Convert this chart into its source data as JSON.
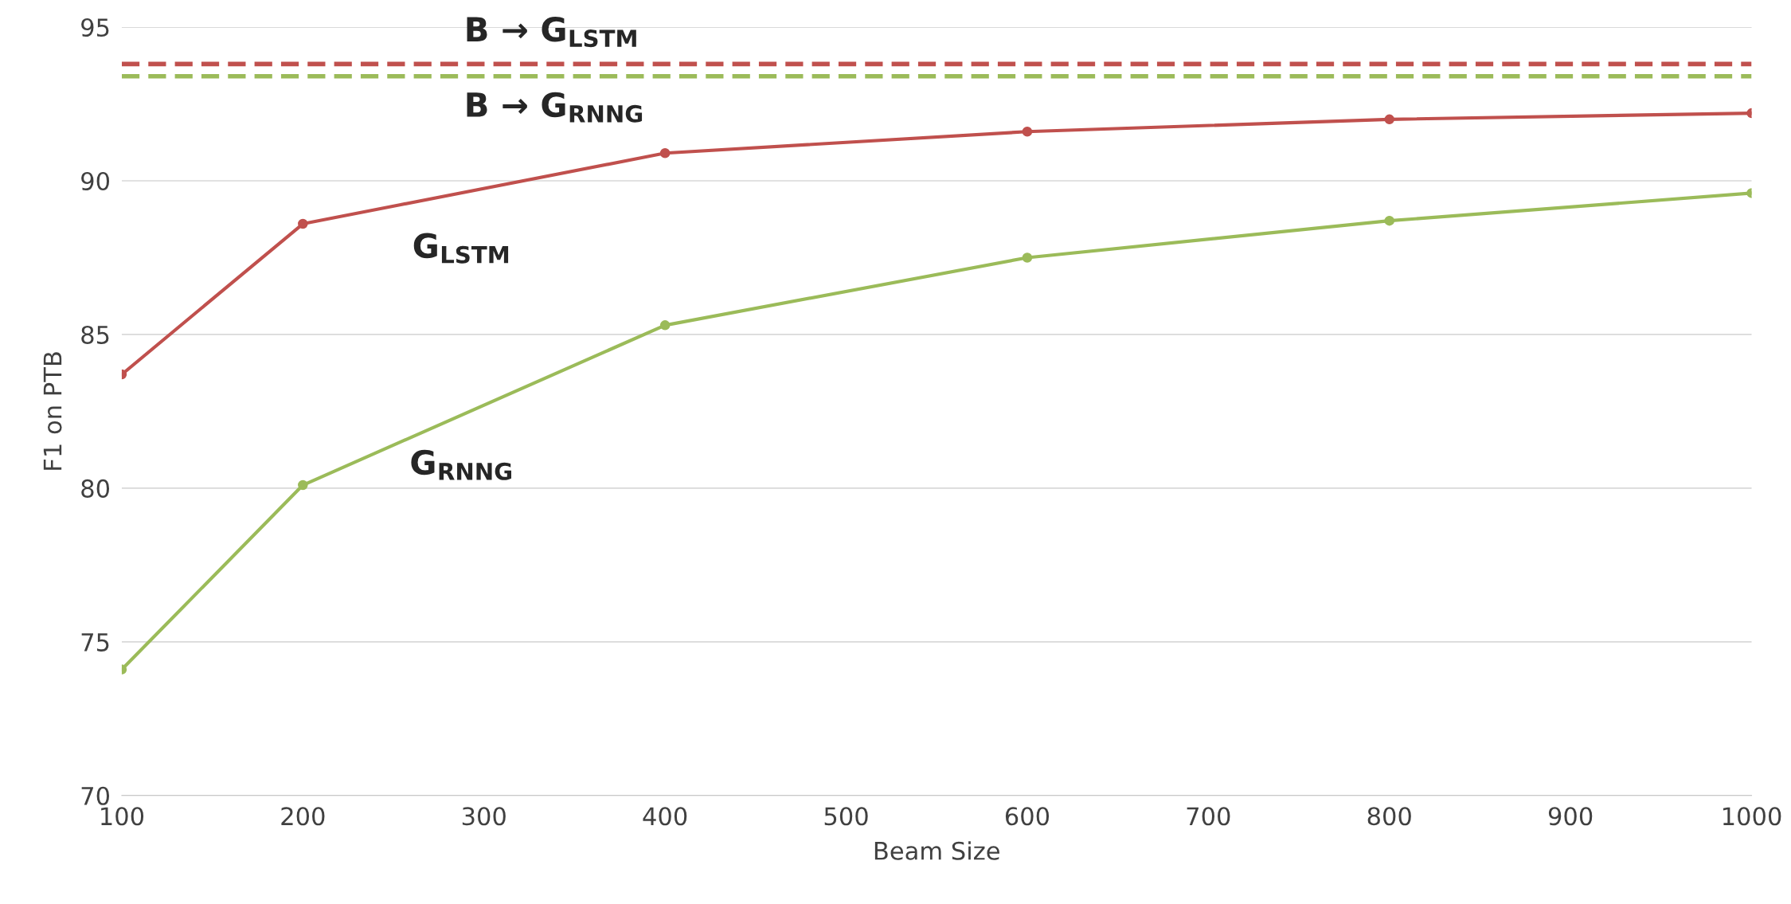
{
  "chart_data": {
    "type": "line",
    "xlabel": "Beam Size",
    "ylabel": "F1 on PTB",
    "x": [
      100,
      200,
      400,
      600,
      800,
      1000
    ],
    "series": [
      {
        "name": "G$_{LSTM}$",
        "color": "#c0504d",
        "values": [
          83.7,
          88.6,
          90.9,
          91.6,
          92.0,
          92.2
        ]
      },
      {
        "name": "G$_{RNNG}$",
        "color": "#9bbb59",
        "values": [
          74.1,
          80.1,
          85.3,
          87.5,
          88.7,
          89.6
        ]
      }
    ],
    "ref_lines": [
      {
        "axis": "y",
        "value": 93.8,
        "label": "B → G$_{LSTM}$",
        "color": "#c0504d",
        "line_style": "dashed"
      },
      {
        "axis": "y",
        "value": 93.4,
        "label": "B → G$_{RNNG}$",
        "color": "#9bbb59",
        "line_style": "dashed"
      }
    ],
    "xlim": [
      100,
      1000
    ],
    "xticks": [
      100,
      200,
      300,
      400,
      500,
      600,
      700,
      800,
      900,
      1000
    ],
    "ylim": [
      70,
      95
    ],
    "yticks": [
      70,
      75,
      80,
      85,
      90,
      95
    ],
    "grid": "y",
    "marker": "circle",
    "line_style": "solid",
    "legend": false
  }
}
